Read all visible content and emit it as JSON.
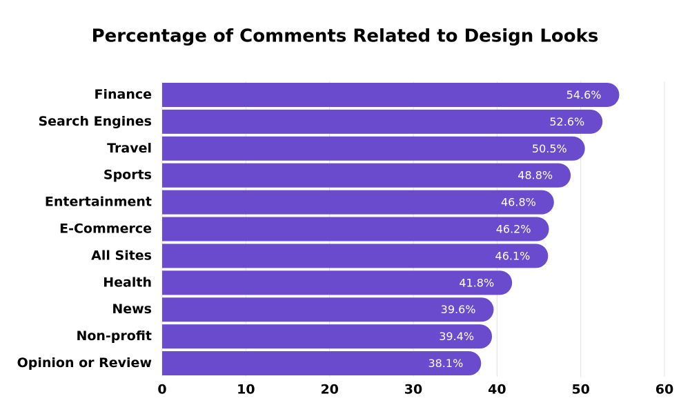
{
  "chart_data": {
    "type": "bar",
    "orientation": "horizontal",
    "title": "Percentage of Comments Related to Design Looks",
    "categories": [
      "Finance",
      "Search Engines",
      "Travel",
      "Sports",
      "Entertainment",
      "E-Commerce",
      "All Sites",
      "Health",
      "News",
      "Non-profit",
      "Opinion or Review"
    ],
    "values": [
      54.6,
      52.6,
      50.5,
      48.8,
      46.8,
      46.2,
      46.1,
      41.8,
      39.6,
      39.4,
      38.1
    ],
    "value_labels": [
      "54.6%",
      "52.6%",
      "50.5%",
      "48.8%",
      "46.8%",
      "46.2%",
      "46.1%",
      "41.8%",
      "39.6%",
      "39.4%",
      "38.1%"
    ],
    "color": "#6a4bcd",
    "xlim": [
      0,
      60
    ],
    "xticks": [
      0,
      10,
      20,
      30,
      40,
      50,
      60
    ],
    "grid": true
  }
}
